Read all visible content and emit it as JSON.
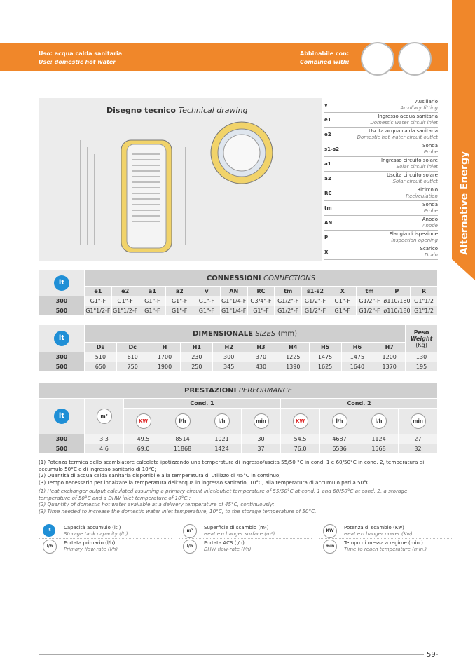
{
  "header": {
    "use_it": "Uso: acqua calda sanitaria",
    "use_en": "Use: domestic hot water",
    "combined_it": "Abbinabile con:",
    "combined_en": "Combined with:"
  },
  "side_tab": "Alternative Energy",
  "drawing": {
    "title_it": "Disegno tecnico",
    "title_en": "Technical drawing"
  },
  "legend": [
    [
      "v",
      "Ausiliario",
      "Auxiliary fitting"
    ],
    [
      "e1",
      "Ingresso acqua sanitaria",
      "Domestic water circuit inlet"
    ],
    [
      "e2",
      "Uscita acqua calda sanitaria",
      "Domestic hot water circuit outlet"
    ],
    [
      "s1-s2",
      "Sonda",
      "Probe"
    ],
    [
      "a1",
      "Ingresso circuito solare",
      "Solar circuit inlet"
    ],
    [
      "a2",
      "Uscita circuito solare",
      "Solar circuit outlet"
    ],
    [
      "RC",
      "Ricircolo",
      "Recirculation"
    ],
    [
      "tm",
      "Sonda",
      "Probe"
    ],
    [
      "AN",
      "Anodo",
      "Anode"
    ],
    [
      "P",
      "Flangia di ispezione",
      "Inspection opening"
    ],
    [
      "X",
      "Scarico",
      "Drain"
    ]
  ],
  "icons": {
    "lt": "lt",
    "m2": "m²",
    "kw": "KW",
    "lh": "l/h",
    "min": "min"
  },
  "connections": {
    "title_it": "CONNESSIONI",
    "title_en": "CONNECTIONS",
    "headers": [
      "e1",
      "e2",
      "a1",
      "a2",
      "v",
      "AN",
      "RC",
      "tm",
      "s1-s2",
      "X",
      "tm",
      "P",
      "R"
    ],
    "rows": [
      [
        "300",
        "G1\"-F",
        "G1\"-F",
        "G1\"-F",
        "G1\"-F",
        "G1\"-F",
        "G1\"1/4-F",
        "G3/4\"-F",
        "G1/2\"-F",
        "G1/2\"-F",
        "G1\"-F",
        "G1/2\"-F",
        "ø110/180",
        "G1\"1/2"
      ],
      [
        "500",
        "G1\"1/2-F",
        "G1\"1/2-F",
        "G1\"-F",
        "G1\"-F",
        "G1\"-F",
        "G1\"1/4-F",
        "G1\"-F",
        "G1/2\"-F",
        "G1/2\"-F",
        "G1\"-F",
        "G1/2\"-F",
        "ø110/180",
        "G1\"1/2"
      ]
    ]
  },
  "sizes": {
    "title_it": "DIMENSIONALE",
    "title_en": "SIZES",
    "unit": "(mm)",
    "weight_it": "Peso",
    "weight_en": "Weight",
    "weight_unit": "(Kg)",
    "headers": [
      "Ds",
      "Dc",
      "H",
      "H1",
      "H2",
      "H3",
      "H4",
      "H5",
      "H6",
      "H7"
    ],
    "rows": [
      [
        "300",
        510,
        610,
        1700,
        230,
        300,
        370,
        1225,
        1475,
        1475,
        1200,
        130
      ],
      [
        "500",
        650,
        750,
        1900,
        250,
        345,
        430,
        1390,
        1625,
        1640,
        1370,
        195
      ]
    ]
  },
  "performance": {
    "title_it": "PRESTAZIONI",
    "title_en": "PERFORMANCE",
    "cond1": "Cond. 1",
    "cond2": "Cond. 2",
    "rows": [
      [
        "300",
        "3,3",
        "49,5",
        8514,
        1021,
        30,
        "54,5",
        4687,
        1124,
        27
      ],
      [
        "500",
        "4,6",
        "69,0",
        11868,
        1424,
        37,
        "76,0",
        6536,
        1568,
        32
      ]
    ]
  },
  "notes_it": [
    "(1) Potenza termica dello scambiatore calcolata ipotizzando una temperatura di ingresso/uscita 55/50 °C in cond. 1 e 60/50°C in cond. 2, temperatura di accumulo 50°C e di ingresso sanitario di 10°C;",
    "(2) Quantità di acqua calda sanitaria disponibile alla temperatura di utilizzo di 45°C in continuo;",
    "(3) Tempo necessario per innalzare la temperatura dell'acqua in ingresso sanitario, 10°C, alla temperatura di accumulo pari a 50°C."
  ],
  "notes_en": [
    "(1) Heat exchanger output calculated assuming a primary circuit inlet/outlet temperature of 55/50°C at cond. 1 and 60/50°C at cond. 2, a storage temperature of 50°C and a DHW inlet temperature of 10°C.;",
    "(2) Quantity of domestic hot water available at a delivery temperature of 45°C, continuously;",
    "(3) Time needed to increase the domestic water inlet temperature, 10°C, to the storage temperature of 50°C."
  ],
  "icon_legend": [
    [
      "Capacità accumulo (lt.)",
      "Storage tank capacity (lt.)"
    ],
    [
      "Superficie di scambio (m²)",
      "Heat exchanger surface (m²)"
    ],
    [
      "Potenza di scambio (Kw)",
      "Heat exchanger power (Kw)"
    ],
    [
      "Portata primario (l/h)",
      "Primary flow-rate (l/h)"
    ],
    [
      "Portata ACS (l/h)",
      "DHW flow-rate (l/h)"
    ],
    [
      "Tempo di messa a regime (min.)",
      "Time to reach temperature (min.)"
    ]
  ],
  "page_number": "59"
}
